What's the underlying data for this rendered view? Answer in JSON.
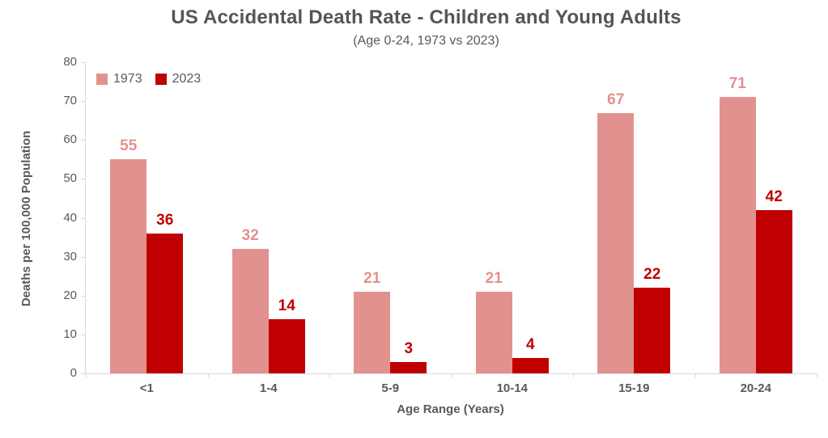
{
  "chart_data": {
    "type": "bar",
    "title": "US Accidental Death Rate - Children and Young Adults",
    "subtitle": "(Age 0-24, 1973 vs 2023)",
    "xlabel": "Age Range (Years)",
    "ylabel": "Deaths per 100,000 Population",
    "categories": [
      "<1",
      "1-4",
      "5-9",
      "10-14",
      "15-19",
      "20-24"
    ],
    "series": [
      {
        "name": "1973",
        "color": "#E2928E",
        "values": [
          55,
          32,
          21,
          21,
          67,
          71
        ]
      },
      {
        "name": "2023",
        "color": "#C00000",
        "values": [
          36,
          14,
          3,
          4,
          22,
          42
        ]
      }
    ],
    "ylim": [
      0,
      80
    ],
    "yticks": [
      0,
      10,
      20,
      30,
      40,
      50,
      60,
      70,
      80
    ],
    "grid": false,
    "legend_position": "top-left",
    "data_labels": true,
    "colors": {
      "axis_line": "#D9D9D9",
      "text": "#595959",
      "title": "#555555",
      "background": "#FFFFFF"
    }
  }
}
